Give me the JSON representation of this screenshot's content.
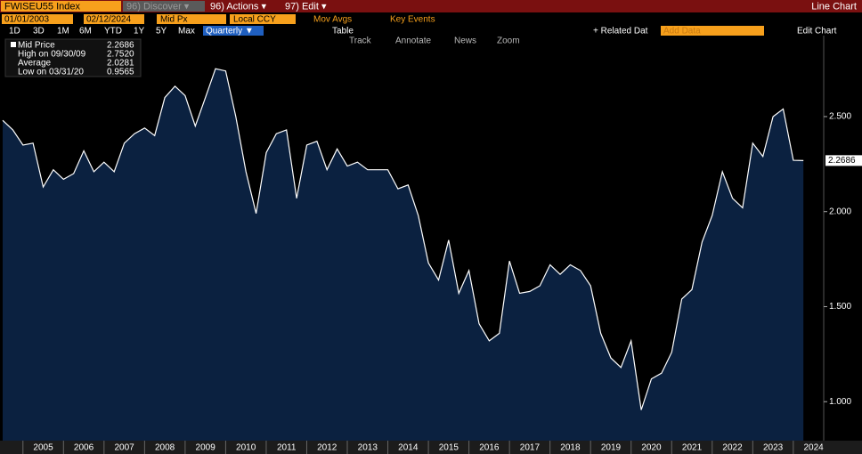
{
  "toolbar": {
    "ticker": "FWISEU55 Index",
    "discover": "96) Discover ▾",
    "actions": "96) Actions ▾",
    "edit": "97) Edit ▾",
    "view": "Line Chart",
    "start_date": "01/01/2003",
    "end_date": "02/12/2024",
    "field": "Mid Px",
    "currency": "Local CCY",
    "mov_avgs": "Mov Avgs",
    "key_events": "Key Events",
    "periods": [
      "1D",
      "3D",
      "1M",
      "6M",
      "YTD",
      "1Y",
      "5Y",
      "Max"
    ],
    "frequency": "Quarterly ▼",
    "table": "Table",
    "related": "+ Related Dat",
    "add_data": "Add Data",
    "edit_chart": "Edit Chart",
    "tools": [
      "Track",
      "Annotate",
      "News",
      "Zoom"
    ]
  },
  "legend": [
    [
      "Mid Price",
      "2.2686"
    ],
    [
      "High on 09/30/09",
      "2.7520"
    ],
    [
      "Average",
      "2.0281"
    ],
    [
      "Low on 03/31/20",
      "0.9565"
    ]
  ],
  "chart_data": {
    "type": "area",
    "series": [
      {
        "name": "Mid Price",
        "color": "#ffffff",
        "fill": "#0b2140",
        "x": [
          2004.5,
          2004.75,
          2005,
          2005.25,
          2005.5,
          2005.75,
          2006,
          2006.25,
          2006.5,
          2006.75,
          2007,
          2007.25,
          2007.5,
          2007.75,
          2008,
          2008.25,
          2008.5,
          2008.75,
          2009,
          2009.25,
          2009.5,
          2009.75,
          2010,
          2010.25,
          2010.5,
          2010.75,
          2011,
          2011.25,
          2011.5,
          2011.75,
          2012,
          2012.25,
          2012.5,
          2012.75,
          2013,
          2013.25,
          2013.5,
          2013.75,
          2014,
          2014.25,
          2014.5,
          2014.75,
          2015,
          2015.25,
          2015.5,
          2015.75,
          2016,
          2016.25,
          2016.5,
          2016.75,
          2017,
          2017.25,
          2017.5,
          2017.75,
          2018,
          2018.25,
          2018.5,
          2018.75,
          2019,
          2019.25,
          2019.5,
          2019.75,
          2020,
          2020.25,
          2020.5,
          2020.75,
          2021,
          2021.25,
          2021.5,
          2021.75,
          2022,
          2022.25,
          2022.5,
          2022.75,
          2023,
          2023.25,
          2023.5,
          2023.75,
          2024,
          2024.25
        ],
        "values": [
          2.48,
          2.43,
          2.35,
          2.36,
          2.13,
          2.22,
          2.17,
          2.2,
          2.32,
          2.21,
          2.26,
          2.21,
          2.36,
          2.41,
          2.44,
          2.4,
          2.6,
          2.66,
          2.61,
          2.45,
          2.6,
          2.752,
          2.74,
          2.5,
          2.21,
          1.99,
          2.31,
          2.41,
          2.43,
          2.07,
          2.35,
          2.37,
          2.22,
          2.33,
          2.24,
          2.26,
          2.22,
          2.22,
          2.22,
          2.12,
          2.14,
          1.98,
          1.73,
          1.64,
          1.85,
          1.57,
          1.69,
          1.41,
          1.32,
          1.36,
          1.74,
          1.57,
          1.58,
          1.61,
          1.72,
          1.67,
          1.72,
          1.69,
          1.61,
          1.36,
          1.23,
          1.18,
          1.32,
          0.9565,
          1.12,
          1.15,
          1.26,
          1.54,
          1.59,
          1.84,
          1.98,
          2.21,
          2.07,
          2.02,
          2.36,
          2.29,
          2.5,
          2.54,
          2.27,
          2.2686
        ]
      }
    ],
    "xlim": [
      2004.5,
      2024.75
    ],
    "xticks": [
      2005,
      2006,
      2007,
      2008,
      2009,
      2010,
      2011,
      2012,
      2013,
      2014,
      2015,
      2016,
      2017,
      2018,
      2019,
      2020,
      2021,
      2022,
      2023,
      2024
    ],
    "ylim": [
      0.795,
      2.926
    ],
    "yticks": [
      {
        "value": 1,
        "label": "1.000"
      },
      {
        "value": 1.5,
        "label": "1.500"
      },
      {
        "value": 2,
        "label": "2.000"
      },
      {
        "value": 2.5,
        "label": "2.500"
      }
    ]
  }
}
